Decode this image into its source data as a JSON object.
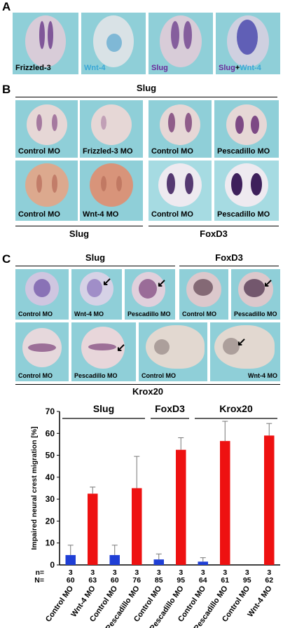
{
  "panels": {
    "a": {
      "letter": "A",
      "tiles": [
        "Frizzled-3",
        "Wnt-4",
        "Slug",
        "Slug",
        "+",
        "Wnt-4"
      ]
    },
    "b": {
      "letter": "B",
      "top_header": "Slug",
      "row1": [
        "Control MO",
        "Frizzled-3 MO",
        "Control MO",
        "Pescadillo MO"
      ],
      "row2": [
        "Control MO",
        "Wnt-4 MO",
        "Control MO",
        "Pescadillo MO"
      ],
      "bottom_left": "Slug",
      "bottom_right": "FoxD3"
    },
    "c": {
      "letter": "C",
      "header_left": "Slug",
      "header_right": "FoxD3",
      "row1": [
        "Control MO",
        "Wnt-4 MO",
        "Pescadillo MO",
        "Control MO",
        "Pescadillo MO"
      ],
      "row2": [
        "Control MO",
        "Pescadillo MO",
        "Control MO",
        "Wnt-4 MO"
      ],
      "bottom_header": "Krox20"
    }
  },
  "colors": {
    "tile_bg": "#8fcfd8",
    "control_bar": "#1f3fd6",
    "treated_bar": "#ee1111",
    "stain": "#5a2a7a",
    "wnt4_text": "#3aa7d6"
  },
  "chart_data": {
    "type": "bar",
    "ylabel": "Impaired neural crest migration [%]",
    "ylim": [
      0,
      70
    ],
    "yticks": [
      0,
      10,
      20,
      30,
      40,
      50,
      60,
      70
    ],
    "groups": [
      "Slug",
      "FoxD3",
      "Krox20"
    ],
    "n_label": "n=",
    "N_label": "N=",
    "categories": [
      "Control MO",
      "Wnt-4 MO",
      "Control MO",
      "Pescadillo MO",
      "Control MO",
      "Pescadillo MO",
      "Control MO",
      "Pescadillo MO",
      "Control MO",
      "Wnt-4 MO"
    ],
    "values": [
      4.5,
      32.5,
      4.5,
      35,
      2.5,
      52.5,
      1.5,
      56.5,
      0,
      59
    ],
    "errors": [
      4.5,
      3,
      4.5,
      14.5,
      2.5,
      5.5,
      1.8,
      9,
      0,
      5.5
    ],
    "n": [
      "3",
      "3",
      "3",
      "3",
      "3",
      "3",
      "3",
      "3",
      "3",
      "3"
    ],
    "N": [
      "60",
      "63",
      "60",
      "76",
      "85",
      "95",
      "64",
      "61",
      "95",
      "62"
    ],
    "bar_colors": [
      "control",
      "treated",
      "control",
      "treated",
      "control",
      "treated",
      "control",
      "treated",
      "control",
      "treated"
    ]
  }
}
